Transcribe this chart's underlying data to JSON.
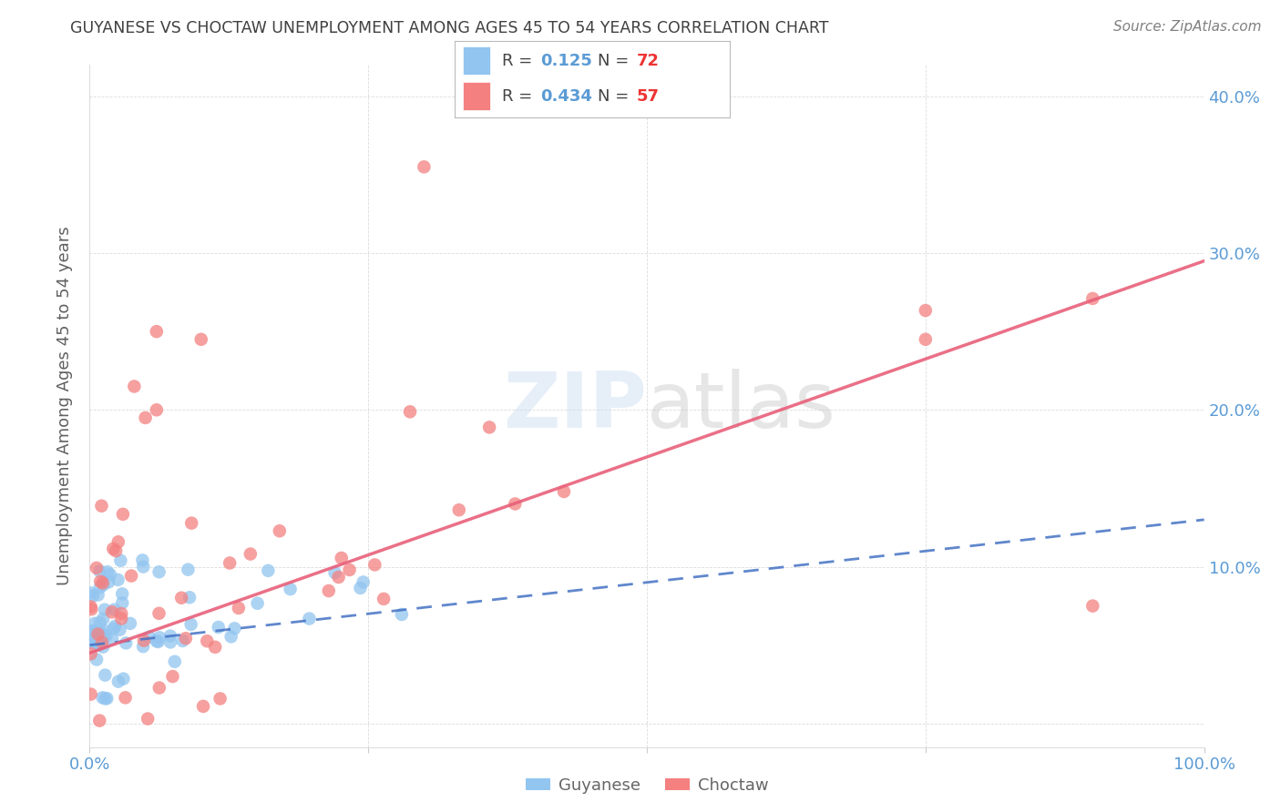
{
  "title": "GUYANESE VS CHOCTAW UNEMPLOYMENT AMONG AGES 45 TO 54 YEARS CORRELATION CHART",
  "source": "Source: ZipAtlas.com",
  "ylabel": "Unemployment Among Ages 45 to 54 years",
  "xlim": [
    0.0,
    1.0
  ],
  "ylim": [
    -0.015,
    0.42
  ],
  "xticks": [
    0.0,
    0.25,
    0.5,
    0.75,
    1.0
  ],
  "xticklabels": [
    "0.0%",
    "",
    "",
    "",
    "100.0%"
  ],
  "yticks": [
    0.0,
    0.1,
    0.2,
    0.3,
    0.4
  ],
  "yticklabels": [
    "",
    "10.0%",
    "20.0%",
    "30.0%",
    "40.0%"
  ],
  "guyanese_R": 0.125,
  "guyanese_N": 72,
  "choctaw_R": 0.434,
  "choctaw_N": 57,
  "guyanese_color": "#92C5F0",
  "choctaw_color": "#F48080",
  "guyanese_line_color": "#4472C4",
  "choctaw_line_color": "#E8607A",
  "axis_color": "#5B9BD5",
  "grid_color": "#CCCCCC",
  "background_color": "#FFFFFF",
  "title_color": "#404040",
  "source_color": "#808080",
  "ylabel_color": "#606060",
  "guyanese_line_start_y": 0.05,
  "guyanese_line_end_y": 0.13,
  "choctaw_line_start_y": 0.045,
  "choctaw_line_end_y": 0.295
}
